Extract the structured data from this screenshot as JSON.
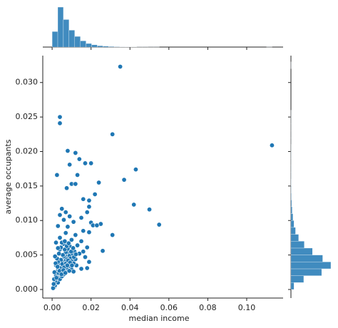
{
  "chart_data": [
    {
      "type": "scatter",
      "xlabel": "median income",
      "ylabel": "average occupants",
      "color": "#1f77b4",
      "xlim": [
        -0.0048,
        0.1187
      ],
      "ylim": [
        -0.00124,
        0.0339
      ],
      "xticks": [
        {
          "value": 0,
          "label": "0.00"
        },
        {
          "value": 0.02,
          "label": "0.02"
        },
        {
          "value": 0.04,
          "label": "0.04"
        },
        {
          "value": 0.06,
          "label": "0.06"
        },
        {
          "value": 0.08,
          "label": "0.08"
        },
        {
          "value": 0.1,
          "label": "0.10"
        }
      ],
      "yticks": [
        {
          "value": 0,
          "label": "0.000"
        },
        {
          "value": 0.005,
          "label": "0.005"
        },
        {
          "value": 0.01,
          "label": "0.010"
        },
        {
          "value": 0.015,
          "label": "0.015"
        },
        {
          "value": 0.02,
          "label": "0.020"
        },
        {
          "value": 0.025,
          "label": "0.025"
        },
        {
          "value": 0.03,
          "label": "0.030"
        }
      ],
      "x": [
        0.035,
        0.113,
        0.004,
        0.004,
        0.031,
        0.008,
        0.012,
        0.014,
        0.017,
        0.02,
        0.009,
        0.043,
        0.0025,
        0.013,
        0.037,
        0.01,
        0.012,
        0.024,
        0.0075,
        0.022,
        0.016,
        0.019,
        0.042,
        0.005,
        0.019,
        0.05,
        0.007,
        0.018,
        0.004,
        0.009,
        0.015,
        0.006,
        0.011,
        0.02,
        0.055,
        0.021,
        0.025,
        0.023,
        0.003,
        0.008,
        0.031,
        0.016,
        0.019,
        0.026,
        0.007,
        0.012,
        0.004,
        0.01,
        0.015,
        0.002,
        0.018,
        0.013,
        0.006,
        0.009,
        0.016,
        0.004,
        0.011,
        0.014,
        0.017,
        0.019,
        0.0125,
        0.015,
        0.018,
        0.001,
        0.0015,
        0.002,
        0.0025,
        0.003,
        0.0035,
        0.004,
        0.0045,
        0.005,
        0.0055,
        0.006,
        0.0065,
        0.007,
        0.0075,
        0.008,
        0.0085,
        0.009,
        0.0095,
        0.01,
        0.011,
        0.012,
        0.0105,
        0.0115,
        0.002,
        0.003,
        0.004,
        0.005,
        0.006,
        0.007,
        0.008,
        0.003,
        0.004,
        0.005,
        0.006,
        0.007,
        0.008,
        0.009,
        0.01,
        0.011,
        0.0015,
        0.0025,
        0.0035,
        0.0045,
        0.0055,
        0.0065,
        0.0075,
        0.0085,
        0.002,
        0.003,
        0.0025,
        0.0035,
        0.0045,
        0.001,
        0.0012,
        0.0018,
        0.0015,
        0.0005,
        0.0008,
        0.0022,
        0.0033,
        0.0042,
        0.0052,
        0.0062,
        0.0072,
        0.0082,
        0.0092,
        0.0102,
        0.0112,
        0.0122,
        0.0028,
        0.0038,
        0.0048,
        0.0058,
        0.0068,
        0.0078,
        0.0088,
        0.0098,
        0.0108,
        0.003,
        0.005,
        0.0065
      ],
      "y": [
        0.0323,
        0.0209,
        0.025,
        0.0241,
        0.0225,
        0.0201,
        0.0198,
        0.0189,
        0.0183,
        0.0183,
        0.0181,
        0.0174,
        0.0166,
        0.0166,
        0.0159,
        0.0153,
        0.0153,
        0.0155,
        0.0147,
        0.0138,
        0.0131,
        0.0129,
        0.0123,
        0.0117,
        0.012,
        0.0116,
        0.0112,
        0.0112,
        0.0108,
        0.0106,
        0.0104,
        0.0101,
        0.0098,
        0.0097,
        0.0094,
        0.0093,
        0.0095,
        0.0093,
        0.0092,
        0.0091,
        0.0079,
        0.0085,
        0.0083,
        0.0056,
        0.0082,
        0.0079,
        0.0075,
        0.0072,
        0.007,
        0.0068,
        0.0061,
        0.0064,
        0.0066,
        0.0063,
        0.0055,
        0.0058,
        0.0057,
        0.0052,
        0.0047,
        0.004,
        0.0035,
        0.003,
        0.0031,
        0.0003,
        0.0006,
        0.001,
        0.0014,
        0.0018,
        0.002,
        0.0023,
        0.0026,
        0.003,
        0.0033,
        0.0036,
        0.004,
        0.0043,
        0.0046,
        0.005,
        0.0053,
        0.0049,
        0.0045,
        0.0041,
        0.0038,
        0.0044,
        0.0052,
        0.0055,
        0.002,
        0.0028,
        0.0035,
        0.0041,
        0.0048,
        0.0054,
        0.0059,
        0.001,
        0.0015,
        0.0019,
        0.0022,
        0.0027,
        0.0031,
        0.0034,
        0.0029,
        0.0026,
        0.0012,
        0.0025,
        0.0032,
        0.0043,
        0.005,
        0.0058,
        0.0063,
        0.0067,
        0.0035,
        0.004,
        0.0045,
        0.0052,
        0.0061,
        0.0015,
        0.0025,
        0.0038,
        0.0048,
        0.0002,
        0.0008,
        0.0017,
        0.0024,
        0.0031,
        0.0037,
        0.0032,
        0.0038,
        0.0042,
        0.0039,
        0.0035,
        0.0047,
        0.0051,
        0.0033,
        0.0027,
        0.0022,
        0.0028,
        0.0024,
        0.0035,
        0.0027,
        0.0055,
        0.006,
        0.006,
        0.0068,
        0.007
      ]
    },
    {
      "type": "histogram",
      "orientation": "vertical",
      "color": "#1f77b4",
      "bins": [
        0,
        0.0029,
        0.0058,
        0.0087,
        0.0116,
        0.0145,
        0.0174,
        0.0203,
        0.0232,
        0.0261,
        0.029,
        0.0319,
        0.0348,
        0.0377,
        0.0406,
        0.0435,
        0.0464,
        0.0493,
        0.0522,
        0.0551,
        0.058,
        0.0609,
        0.0638,
        0.0667,
        0.0696,
        0.0725,
        0.0754,
        0.0783,
        0.0812,
        0.0841,
        0.087,
        0.0899,
        0.0928,
        0.0957,
        0.0986,
        0.1015,
        0.1044,
        0.1073,
        0.1102,
        0.1131
      ],
      "values": [
        350,
        900,
        620,
        380,
        240,
        140,
        80,
        50,
        30,
        20,
        12,
        8,
        6,
        4,
        3,
        2,
        2,
        1,
        1,
        0,
        0,
        0,
        0,
        0,
        0,
        0,
        0,
        0,
        0,
        0,
        0,
        0,
        0,
        0,
        0,
        0,
        0,
        0,
        1
      ]
    },
    {
      "type": "histogram",
      "orientation": "horizontal",
      "color": "#1f77b4",
      "bins": [
        0,
        0.001,
        0.002,
        0.003,
        0.004,
        0.005,
        0.006,
        0.007,
        0.008,
        0.009,
        0.01,
        0.011,
        0.012,
        0.013,
        0.014,
        0.015,
        0.016,
        0.017,
        0.018,
        0.019,
        0.02,
        0.021,
        0.022,
        0.023,
        0.024,
        0.025,
        0.026,
        0.027,
        0.028,
        0.029,
        0.03,
        0.031,
        0.032,
        0.033
      ],
      "values": [
        60,
        250,
        600,
        780,
        620,
        420,
        260,
        150,
        90,
        60,
        40,
        25,
        15,
        8,
        6,
        5,
        4,
        3,
        2,
        3,
        2,
        1,
        1,
        1,
        1,
        1,
        0,
        0,
        0,
        0,
        0,
        0,
        1
      ]
    }
  ]
}
